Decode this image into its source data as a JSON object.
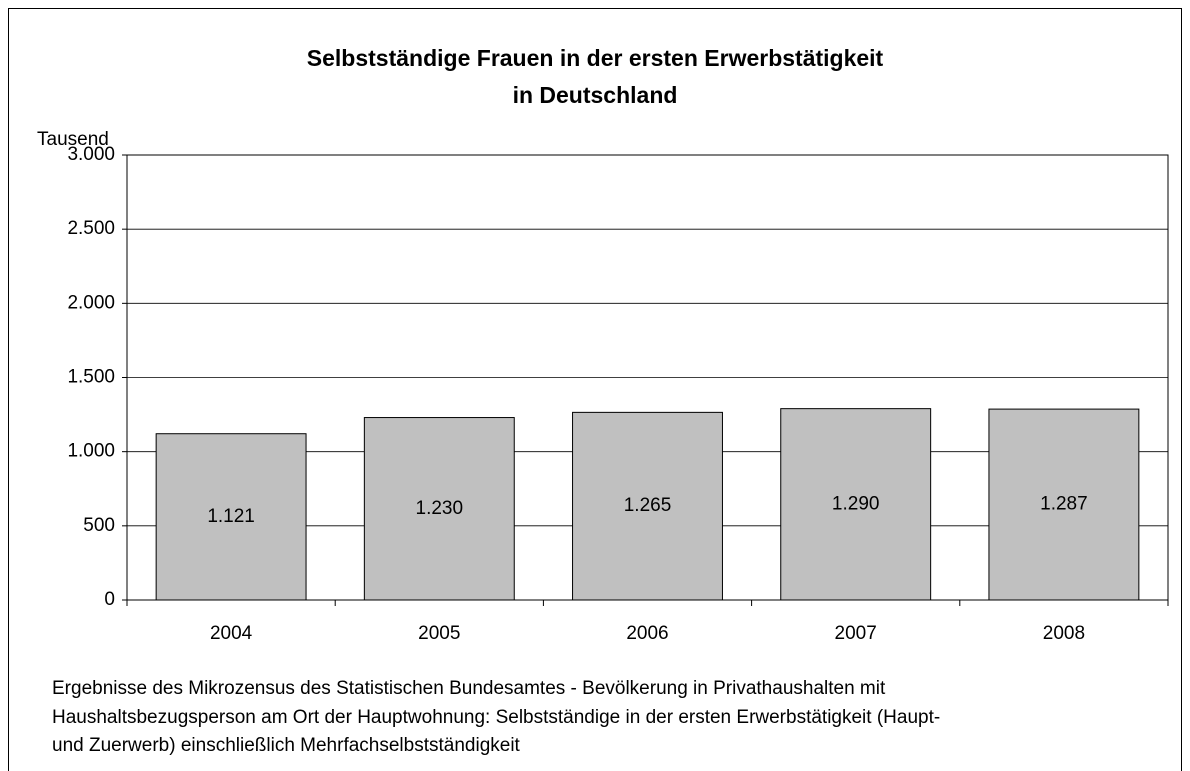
{
  "chart_data": {
    "type": "bar",
    "title": [
      "Selbstständige Frauen in der ersten Erwerbstätigkeit",
      "in Deutschland"
    ],
    "y_label": "Tausend",
    "categories": [
      "2004",
      "2005",
      "2006",
      "2007",
      "2008"
    ],
    "values": [
      1121,
      1230,
      1265,
      1290,
      1287
    ],
    "value_labels": [
      "1.121",
      "1.230",
      "1.265",
      "1.290",
      "1.287"
    ],
    "color": "#c0c0c0",
    "ylim": [
      0,
      3000
    ],
    "yticks": [
      0,
      500,
      {
        "value": 1000,
        "label": "1.000"
      },
      {
        "value": 1500,
        "label": "1.500"
      },
      {
        "value": 2000,
        "label": "2.000"
      },
      {
        "value": 2500,
        "label": "2.500"
      },
      {
        "value": 3000,
        "label": "3.000"
      }
    ],
    "grid": true,
    "note": [
      "Ergebnisse des Mikrozensus des Statistischen Bundesamtes - Bevölkerung in Privathaushalten mit",
      "Haushaltsbezugsperson am Ort der Hauptwohnung: Selbstständige in der ersten Erwerbstätigkeit (Haupt-",
      "und Zuerwerb) einschließlich Mehrfachselbstständigkeit"
    ]
  }
}
